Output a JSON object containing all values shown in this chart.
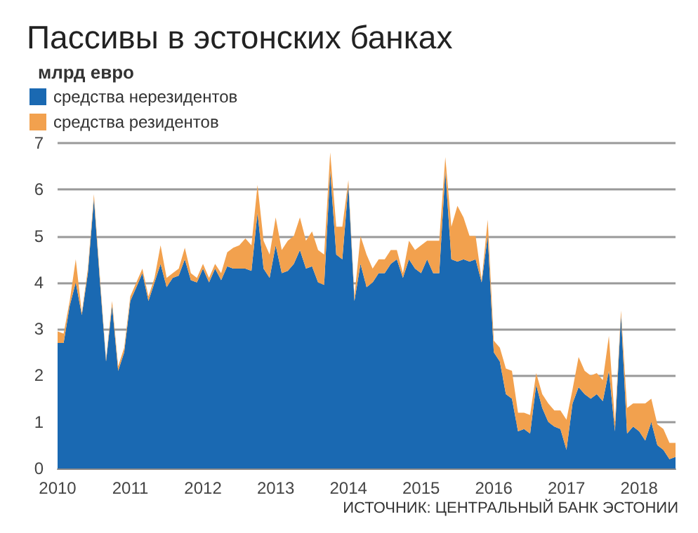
{
  "chart_data": {
    "type": "area",
    "title": "Пассивы в эстонских банках",
    "subtitle": "млрд евро",
    "stacked": true,
    "x": [
      "2010-01",
      "2010-02",
      "2010-03",
      "2010-04",
      "2010-05",
      "2010-06",
      "2010-07",
      "2010-08",
      "2010-09",
      "2010-10",
      "2010-11",
      "2010-12",
      "2011-01",
      "2011-02",
      "2011-03",
      "2011-04",
      "2011-05",
      "2011-06",
      "2011-07",
      "2011-08",
      "2011-09",
      "2011-10",
      "2011-11",
      "2011-12",
      "2012-01",
      "2012-02",
      "2012-03",
      "2012-04",
      "2012-05",
      "2012-06",
      "2012-07",
      "2012-08",
      "2012-09",
      "2012-10",
      "2012-11",
      "2012-12",
      "2013-01",
      "2013-02",
      "2013-03",
      "2013-04",
      "2013-05",
      "2013-06",
      "2013-07",
      "2013-08",
      "2013-09",
      "2013-10",
      "2013-11",
      "2013-12",
      "2014-01",
      "2014-02",
      "2014-03",
      "2014-04",
      "2014-05",
      "2014-06",
      "2014-07",
      "2014-08",
      "2014-09",
      "2014-10",
      "2014-11",
      "2014-12",
      "2015-01",
      "2015-02",
      "2015-03",
      "2015-04",
      "2015-05",
      "2015-06",
      "2015-07",
      "2015-08",
      "2015-09",
      "2015-10",
      "2015-11",
      "2015-12",
      "2016-01",
      "2016-02",
      "2016-03",
      "2016-04",
      "2016-05",
      "2016-06",
      "2016-07",
      "2016-08",
      "2016-09",
      "2016-10",
      "2016-11",
      "2016-12",
      "2017-01",
      "2017-02",
      "2017-03",
      "2017-04",
      "2017-05",
      "2017-06",
      "2017-07",
      "2017-08",
      "2017-09",
      "2017-10",
      "2017-11",
      "2017-12",
      "2018-01",
      "2018-02",
      "2018-03",
      "2018-04",
      "2018-05",
      "2018-06",
      "2018-07"
    ],
    "series": [
      {
        "name": "средства нерезидентов",
        "color": "#1a69b2",
        "values": [
          2.7,
          2.7,
          3.5,
          4.0,
          3.3,
          4.2,
          5.8,
          4.0,
          2.3,
          3.5,
          2.1,
          2.5,
          3.6,
          3.9,
          4.2,
          3.6,
          4.0,
          4.4,
          3.9,
          4.1,
          4.15,
          4.5,
          4.05,
          4.0,
          4.3,
          4.0,
          4.3,
          4.05,
          4.35,
          4.3,
          4.3,
          4.3,
          4.25,
          5.5,
          4.3,
          4.1,
          4.8,
          4.2,
          4.25,
          4.4,
          4.7,
          4.3,
          4.35,
          4.0,
          3.95,
          6.4,
          4.6,
          4.5,
          6.1,
          3.6,
          4.4,
          3.9,
          4.0,
          4.2,
          4.2,
          4.4,
          4.5,
          4.1,
          4.5,
          4.3,
          4.2,
          4.5,
          4.2,
          4.2,
          6.4,
          4.5,
          4.45,
          4.5,
          4.45,
          4.5,
          4.0,
          5.0,
          2.5,
          2.3,
          1.6,
          1.5,
          0.8,
          0.85,
          0.75,
          1.8,
          1.3,
          1.0,
          0.9,
          0.85,
          0.4,
          1.4,
          1.75,
          1.6,
          1.5,
          1.6,
          1.45,
          2.1,
          0.8,
          3.3,
          0.75,
          0.9,
          0.8,
          0.6,
          1.0,
          0.5,
          0.4,
          0.2,
          0.25
        ]
      },
      {
        "name": "средства резидентов",
        "color": "#f2a14e",
        "values": [
          0.25,
          0.2,
          0.1,
          0.5,
          0.05,
          0.1,
          0.1,
          0.1,
          0.05,
          0.1,
          0.1,
          0.1,
          0.1,
          0.1,
          0.1,
          0.1,
          0.1,
          0.4,
          0.2,
          0.1,
          0.15,
          0.25,
          0.15,
          0.1,
          0.1,
          0.1,
          0.1,
          0.15,
          0.3,
          0.45,
          0.5,
          0.65,
          0.55,
          0.6,
          0.6,
          0.5,
          0.6,
          0.5,
          0.65,
          0.6,
          0.7,
          0.6,
          0.75,
          0.7,
          0.65,
          0.4,
          0.6,
          0.7,
          0.1,
          0.1,
          0.6,
          0.7,
          0.3,
          0.3,
          0.3,
          0.3,
          0.2,
          0.1,
          0.4,
          0.4,
          0.6,
          0.4,
          0.7,
          0.7,
          0.3,
          0.7,
          1.2,
          0.9,
          0.55,
          0.5,
          0.05,
          0.35,
          0.25,
          0.3,
          0.55,
          0.6,
          0.4,
          0.35,
          0.4,
          0.25,
          0.3,
          0.4,
          0.35,
          0.4,
          0.65,
          0.3,
          0.65,
          0.5,
          0.5,
          0.45,
          0.45,
          0.75,
          0.2,
          0.1,
          0.55,
          0.5,
          0.6,
          0.8,
          0.5,
          0.45,
          0.45,
          0.35,
          0.3
        ]
      }
    ],
    "xlim": [
      "2010-01",
      "2018-07"
    ],
    "xticks": [
      "2010",
      "2011",
      "2012",
      "2013",
      "2014",
      "2015",
      "2016",
      "2017",
      "2018"
    ],
    "ylim": [
      0,
      7
    ],
    "yticks": [
      0,
      1,
      2,
      3,
      4,
      5,
      6,
      7
    ],
    "grid": "y",
    "legend": "top left",
    "annotations": [
      "ИСТОЧНИК: ЦЕНТРАЛЬНЫЙ БАНК ЭСТОНИИ"
    ]
  }
}
